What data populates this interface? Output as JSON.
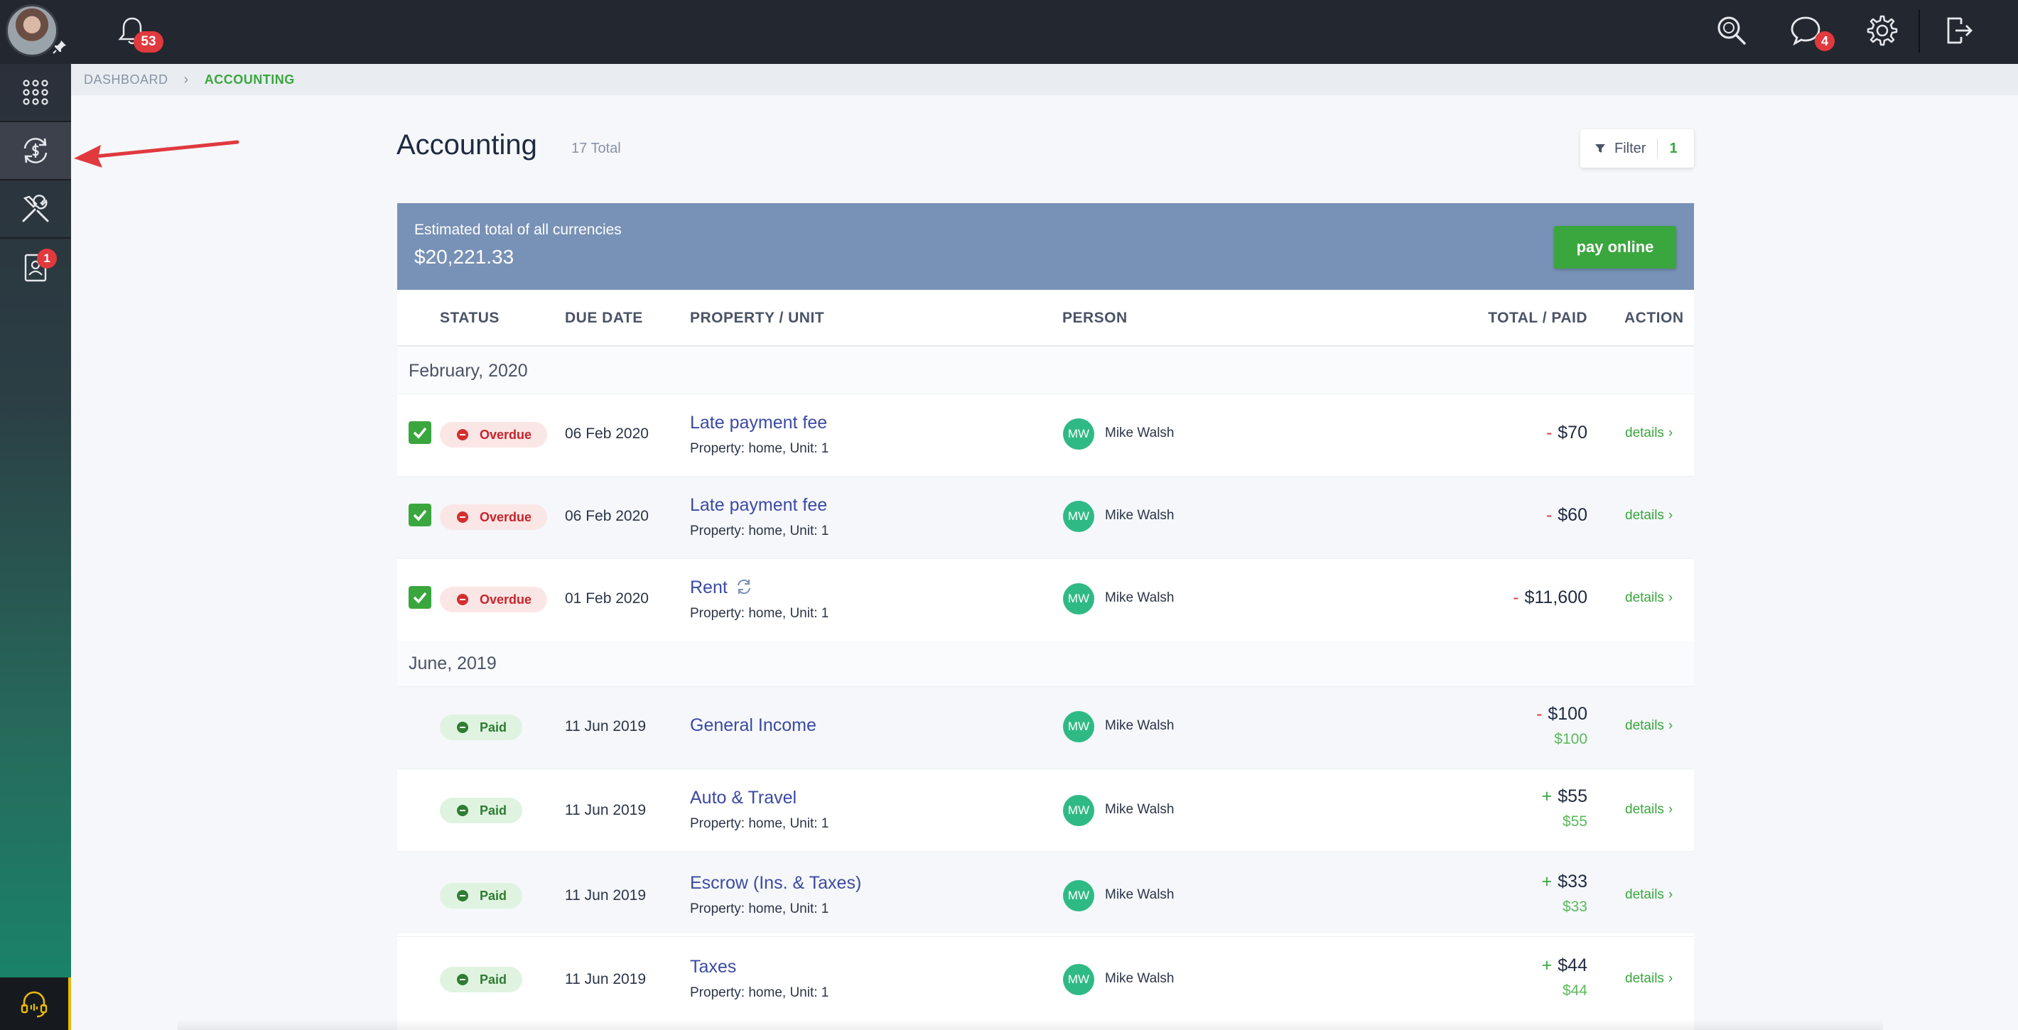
{
  "topbar": {
    "notifications_count": "53",
    "messages_count": "4",
    "icons": [
      "bell-icon",
      "search-icon",
      "chat-icon",
      "gear-icon",
      "logout-icon"
    ]
  },
  "sidebar": {
    "items": [
      {
        "icon": "apps-grid-icon",
        "active": false
      },
      {
        "icon": "currency-exchange-icon",
        "active": true
      },
      {
        "icon": "tools-icon",
        "active": false
      },
      {
        "icon": "contact-card-icon",
        "active": false,
        "badge": "1"
      }
    ],
    "support_icon": "headset-icon"
  },
  "breadcrumb": {
    "items": [
      "DASHBOARD",
      "ACCOUNTING"
    ],
    "separator": "›"
  },
  "page": {
    "title": "Accounting",
    "total": "17 Total",
    "filter_label": "Filter",
    "filter_count": "1"
  },
  "summary": {
    "label": "Estimated total of all currencies",
    "value": "$20,221.33",
    "pay_button": "pay online"
  },
  "table": {
    "columns": [
      "STATUS",
      "DUE DATE",
      "PROPERTY / UNIT",
      "PERSON",
      "TOTAL / PAID",
      "ACTION"
    ],
    "groups": [
      "February, 2020",
      "June, 2019"
    ],
    "rows": [
      {
        "status": "Overdue",
        "due": "06 Feb 2020",
        "title": "Late payment fee",
        "sub": "Property: home, Unit: 1",
        "initials": "MW",
        "person": "Mike Walsh",
        "sign": "-",
        "total": "$70",
        "paid": "",
        "action": "details"
      },
      {
        "status": "Overdue",
        "due": "06 Feb 2020",
        "title": "Late payment fee",
        "sub": "Property: home, Unit: 1",
        "initials": "MW",
        "person": "Mike Walsh",
        "sign": "-",
        "total": "$60",
        "paid": "",
        "action": "details"
      },
      {
        "status": "Overdue",
        "due": "01 Feb 2020",
        "title": "Rent",
        "sub": "Property: home, Unit: 1",
        "initials": "MW",
        "person": "Mike Walsh",
        "sign": "-",
        "total": "$11,600",
        "paid": "",
        "action": "details"
      },
      {
        "status": "Paid",
        "due": "11 Jun 2019",
        "title": "General Income",
        "sub": "",
        "initials": "MW",
        "person": "Mike Walsh",
        "sign": "-",
        "total": "$100",
        "paid": "$100",
        "action": "details"
      },
      {
        "status": "Paid",
        "due": "11 Jun 2019",
        "title": "Auto & Travel",
        "sub": "Property: home, Unit: 1",
        "initials": "MW",
        "person": "Mike Walsh",
        "sign": "+",
        "total": "$55",
        "paid": "$55",
        "action": "details"
      },
      {
        "status": "Paid",
        "due": "11 Jun 2019",
        "title": "Escrow (Ins. & Taxes)",
        "sub": "Property: home, Unit: 1",
        "initials": "MW",
        "person": "Mike Walsh",
        "sign": "+",
        "total": "$33",
        "paid": "$33",
        "action": "details"
      },
      {
        "status": "Paid",
        "due": "11 Jun 2019",
        "title": "Taxes",
        "sub": "Property: home, Unit: 1",
        "initials": "MW",
        "person": "Mike Walsh",
        "sign": "+",
        "total": "$44",
        "paid": "$44",
        "action": "details"
      }
    ]
  },
  "colors": {
    "accent_green": "#3aa63e",
    "summary_bg": "#7891b6",
    "overdue_red": "#c6252b",
    "annotation_arrow": "#e0393e"
  }
}
